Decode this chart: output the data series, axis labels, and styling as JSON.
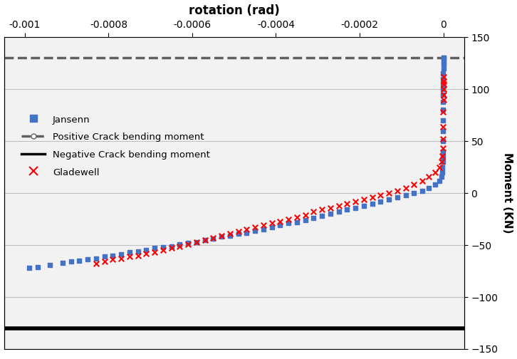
{
  "xlabel_top": "rotation (rad)",
  "ylabel_right": "Moment (KN)",
  "xlim": [
    -0.00105,
    5e-05
  ],
  "ylim": [
    -150,
    150
  ],
  "xticks_top": [
    -0.001,
    -0.0008,
    -0.0006,
    -0.0004,
    -0.0002,
    0
  ],
  "yticks": [
    -150,
    -100,
    -50,
    0,
    50,
    100,
    150
  ],
  "positive_crack_moment": 130,
  "negative_crack_moment": -130,
  "jansenn_x": [
    -0.00099,
    -0.00097,
    -0.00094,
    -0.00091,
    -0.00089,
    -0.00087,
    -0.00085,
    -0.00083,
    -0.00081,
    -0.00079,
    -0.00077,
    -0.00075,
    -0.00073,
    -0.00071,
    -0.00069,
    -0.00067,
    -0.00065,
    -0.00063,
    -0.00061,
    -0.00059,
    -0.00057,
    -0.00055,
    -0.00053,
    -0.00051,
    -0.00049,
    -0.00047,
    -0.00045,
    -0.00043,
    -0.00041,
    -0.00039,
    -0.00037,
    -0.00035,
    -0.00033,
    -0.00031,
    -0.00029,
    -0.00027,
    -0.00025,
    -0.00023,
    -0.00021,
    -0.00019,
    -0.00017,
    -0.00015,
    -0.00013,
    -0.00011,
    -9e-05,
    -7e-05,
    -5e-05,
    -3.5e-05,
    -2e-05,
    -1e-05,
    -5e-06,
    -3e-06,
    -2e-06,
    -1.5e-06,
    -1e-06,
    -8e-07,
    -6e-07,
    -4e-07,
    -2e-07,
    -1.5e-07,
    -1e-07,
    -8e-08,
    -6e-08,
    -4e-08,
    -3e-08,
    -2e-08,
    -1e-08,
    0.0,
    0.0,
    0.0,
    0.0
  ],
  "jansenn_y": [
    -72,
    -71,
    -69,
    -67,
    -66,
    -65,
    -64,
    -63,
    -61,
    -60,
    -59,
    -57,
    -56,
    -55,
    -53,
    -52,
    -51,
    -49,
    -48,
    -47,
    -45,
    -44,
    -42,
    -41,
    -39,
    -38,
    -36,
    -35,
    -33,
    -31,
    -29,
    -28,
    -26,
    -24,
    -22,
    -20,
    -18,
    -16,
    -14,
    -12,
    -10,
    -8,
    -6,
    -4,
    -2,
    0,
    2,
    5,
    8,
    12,
    16,
    20,
    25,
    30,
    35,
    40,
    50,
    60,
    70,
    80,
    88,
    95,
    100,
    105,
    110,
    115,
    120,
    124,
    127,
    130,
    130
  ],
  "gladewell_x": [
    -0.00083,
    -0.00081,
    -0.00079,
    -0.00077,
    -0.00075,
    -0.00073,
    -0.00071,
    -0.00069,
    -0.00067,
    -0.00065,
    -0.00063,
    -0.00061,
    -0.00059,
    -0.00057,
    -0.00055,
    -0.00053,
    -0.00051,
    -0.00049,
    -0.00047,
    -0.00045,
    -0.00043,
    -0.00041,
    -0.00039,
    -0.00037,
    -0.00035,
    -0.00033,
    -0.00031,
    -0.00029,
    -0.00027,
    -0.00025,
    -0.00023,
    -0.00021,
    -0.00019,
    -0.00017,
    -0.00015,
    -0.00013,
    -0.00011,
    -9e-05,
    -7e-05,
    -5e-05,
    -3.5e-05,
    -2e-05,
    -1e-05,
    -5e-06,
    -2e-06,
    -1e-06,
    -5e-07,
    -2e-07,
    -1e-07,
    0.0,
    0.0,
    0.0,
    0.0,
    0.0,
    0.0
  ],
  "gladewell_y": [
    -68,
    -66,
    -64,
    -63,
    -61,
    -60,
    -58,
    -57,
    -55,
    -53,
    -51,
    -49,
    -47,
    -45,
    -43,
    -41,
    -39,
    -37,
    -35,
    -33,
    -31,
    -29,
    -27,
    -25,
    -23,
    -21,
    -18,
    -16,
    -14,
    -12,
    -10,
    -8,
    -6,
    -4,
    -2,
    0,
    2,
    5,
    8,
    12,
    16,
    20,
    25,
    30,
    36,
    43,
    52,
    64,
    78,
    90,
    95,
    100,
    105,
    108,
    112
  ],
  "jansenn_color": "#4472C4",
  "gladewell_color": "#FF0000",
  "pos_crack_color": "#606060",
  "neg_crack_color": "#000000",
  "grid_color": "#C0C0C0",
  "background_color": "#F2F2F2"
}
